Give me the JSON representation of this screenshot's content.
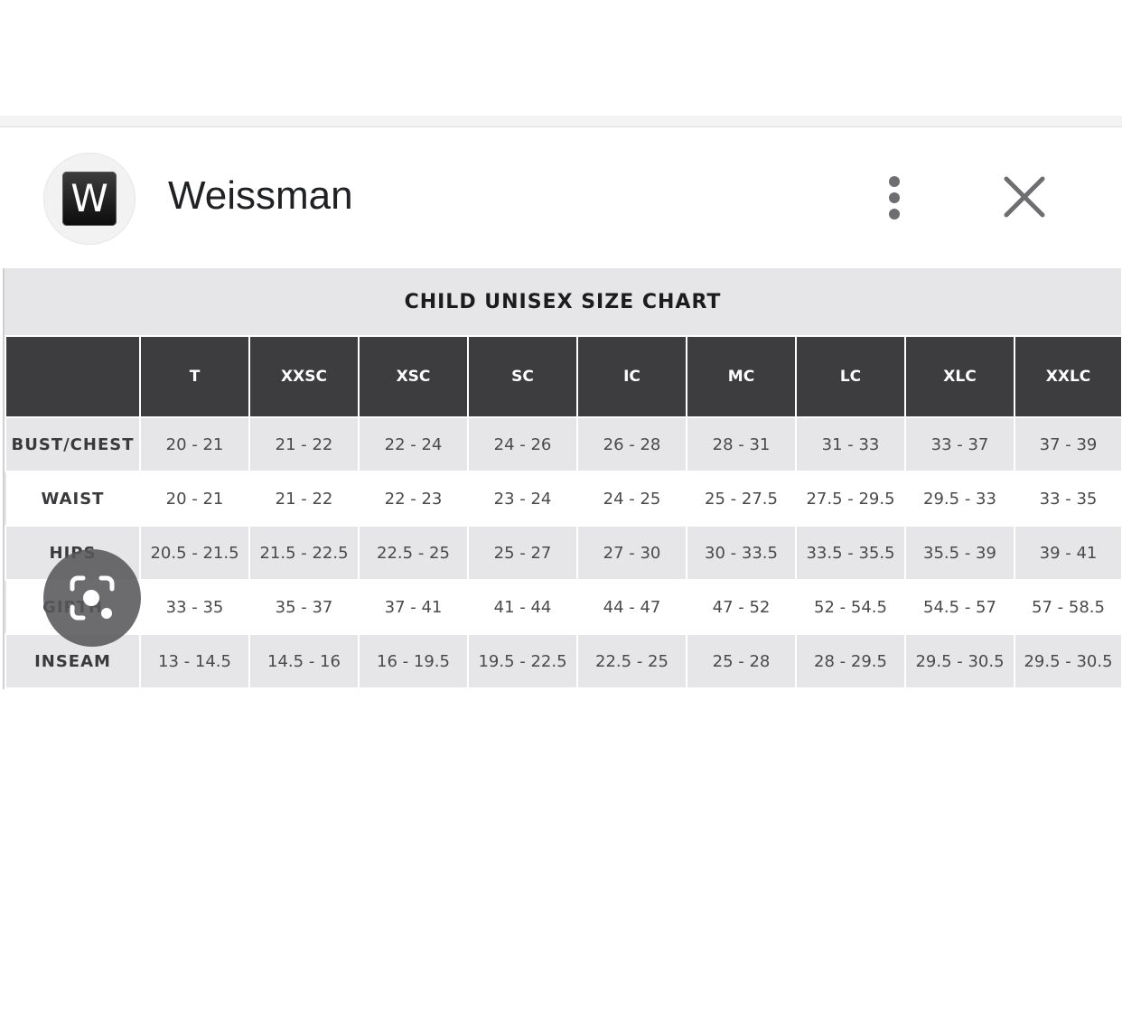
{
  "header": {
    "avatar_letter": "W",
    "site_name": "Weissman",
    "more_icon": "more-vertical-icon",
    "close_icon": "close-icon"
  },
  "chart_data": {
    "type": "table",
    "title": "CHILD UNISEX SIZE CHART",
    "columns": [
      "T",
      "XXSC",
      "XSC",
      "SC",
      "IC",
      "MC",
      "LC",
      "XLC",
      "XXLC"
    ],
    "rows": [
      {
        "label": "BUST/CHEST",
        "values": [
          "20 - 21",
          "21 - 22",
          "22 - 24",
          "24 - 26",
          "26 - 28",
          "28 - 31",
          "31 - 33",
          "33 - 37",
          "37 - 39"
        ]
      },
      {
        "label": "WAIST",
        "values": [
          "20 - 21",
          "21 - 22",
          "22 - 23",
          "23 - 24",
          "24 - 25",
          "25 - 27.5",
          "27.5 - 29.5",
          "29.5 - 33",
          "33 - 35"
        ]
      },
      {
        "label": "HIPS",
        "values": [
          "20.5 - 21.5",
          "21.5 - 22.5",
          "22.5 - 25",
          "25 - 27",
          "27 - 30",
          "30 - 33.5",
          "33.5 - 35.5",
          "35.5 - 39",
          "39 - 41"
        ]
      },
      {
        "label": "GIRTH",
        "values": [
          "33 - 35",
          "35 - 37",
          "37 - 41",
          "41 - 44",
          "44 - 47",
          "47 - 52",
          "52 - 54.5",
          "54.5 - 57",
          "57 - 58.5"
        ]
      },
      {
        "label": "INSEAM",
        "values": [
          "13 - 14.5",
          "14.5 - 16",
          "16 - 19.5",
          "19.5 - 22.5",
          "22.5 - 25",
          "25 - 28",
          "28 - 29.5",
          "29.5 - 30.5",
          "29.5 - 30.5"
        ]
      }
    ]
  },
  "overlay": {
    "lens_icon": "lens-search-icon"
  },
  "colors": {
    "header_bg": "#3d3d3f",
    "shade_row": "#e6e6e9",
    "text_dark": "#202124"
  }
}
